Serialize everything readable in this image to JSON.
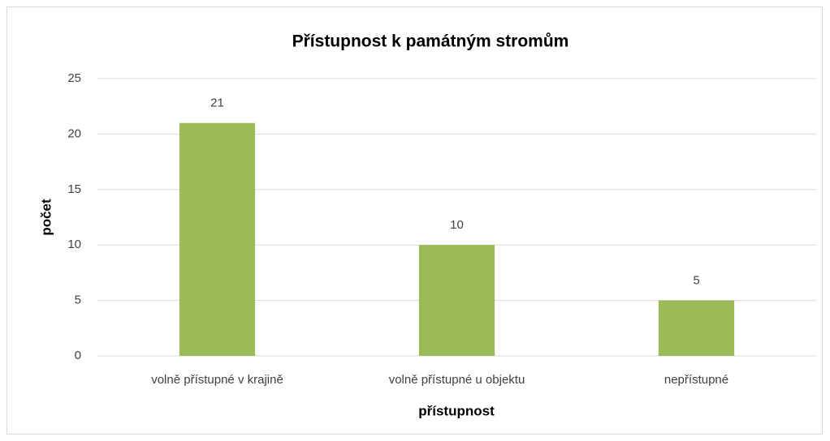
{
  "chart_data": {
    "type": "bar",
    "title": "Přístupnost k památným stromům",
    "x_label": "přístupnost",
    "y_label": "počet",
    "categories": [
      "volně přístupné v krajině",
      "volně přístupné u objektu",
      "nepřístupné"
    ],
    "values": [
      21,
      10,
      5
    ],
    "color": "#9bbb59",
    "ylim": [
      0,
      25
    ],
    "yticks": [
      0,
      5,
      10,
      15,
      20,
      25
    ],
    "grid": true,
    "data_labels": true
  }
}
